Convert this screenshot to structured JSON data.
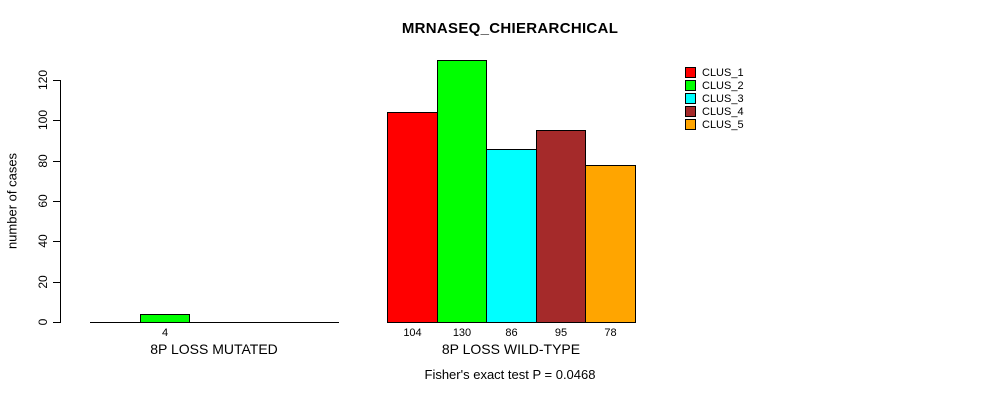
{
  "chart_data": {
    "type": "bar",
    "title": "MRNASEQ_CHIERARCHICAL",
    "ylabel": "number of cases",
    "ylim": [
      0,
      120
    ],
    "yticks": [
      0,
      20,
      40,
      60,
      80,
      100,
      120
    ],
    "grid": false,
    "legend_position": "top-right",
    "series_names": [
      "CLUS_1",
      "CLUS_2",
      "CLUS_3",
      "CLUS_4",
      "CLUS_5"
    ],
    "colors": [
      "#ff0000",
      "#00ff00",
      "#00ffff",
      "#a52a2a",
      "#ffa500"
    ],
    "groups": [
      {
        "label": "8P LOSS MUTATED",
        "values": [
          0,
          4,
          0,
          0,
          0
        ]
      },
      {
        "label": "8P LOSS WILD-TYPE",
        "values": [
          104,
          130,
          86,
          95,
          78
        ]
      }
    ],
    "annotation": "Fisher's exact test P = 0.0468"
  },
  "legend": {
    "items": [
      {
        "label": "CLUS_1",
        "color": "#ff0000"
      },
      {
        "label": "CLUS_2",
        "color": "#00ff00"
      },
      {
        "label": "CLUS_3",
        "color": "#00ffff"
      },
      {
        "label": "CLUS_4",
        "color": "#a52a2a"
      },
      {
        "label": "CLUS_5",
        "color": "#ffa500"
      }
    ]
  }
}
